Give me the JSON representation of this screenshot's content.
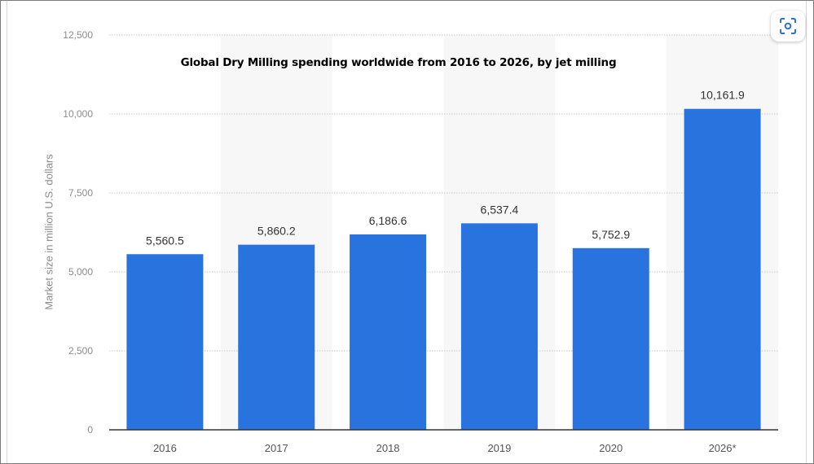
{
  "chart_data": {
    "type": "bar",
    "title": "Global Dry Milling spending worldwide from 2016 to 2026, by jet milling",
    "xlabel": "",
    "ylabel": "Market size in million U.S. dollars",
    "categories": [
      "2016",
      "2017",
      "2018",
      "2019",
      "2020",
      "2026*"
    ],
    "values": [
      5560.5,
      5860.2,
      6186.6,
      6537.4,
      5752.9,
      10161.9
    ],
    "value_labels": [
      "5,560.5",
      "5,860.2",
      "6,186.6",
      "6,537.4",
      "5,752.9",
      "10,161.9"
    ],
    "ylim": [
      0,
      12500
    ],
    "yticks": [
      0,
      2500,
      5000,
      7500,
      10000,
      12500
    ],
    "ytick_labels": [
      "0",
      "2,500",
      "5,000",
      "7,500",
      "10,000",
      "12,500"
    ],
    "grid": true,
    "legend": "none",
    "bar_color": "#2873de",
    "band_color": "#f7f7f7"
  },
  "toolbar": {
    "zoom_icon": "focus-scan-icon"
  }
}
